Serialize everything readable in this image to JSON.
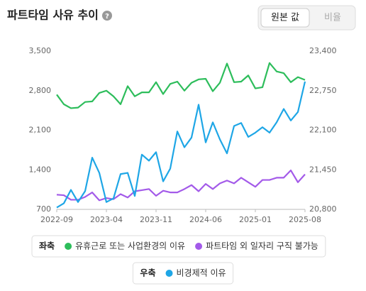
{
  "controls": {
    "options": [
      "원본 값",
      "비율"
    ],
    "selected": 0
  },
  "chart_data": {
    "type": "line",
    "title": "파트타임 사유 추이",
    "x": [
      "2022-09",
      null,
      null,
      null,
      null,
      null,
      null,
      "2023-04",
      null,
      null,
      null,
      null,
      null,
      null,
      "2023-11",
      null,
      null,
      null,
      null,
      null,
      null,
      "2024-06",
      null,
      null,
      null,
      null,
      null,
      null,
      "2025-01",
      null,
      null,
      null,
      null,
      null,
      null,
      "2025-08"
    ],
    "ylim": [
      700,
      3500
    ],
    "yticks": [
      700,
      {
        "value": 1400,
        "label": "1,400"
      },
      {
        "value": 2100,
        "label": "2,100"
      },
      {
        "value": 2800,
        "label": "2,800"
      },
      {
        "value": 3500,
        "label": "3,500"
      }
    ],
    "y2lim": [
      20800,
      23400
    ],
    "y2ticks": [
      {
        "value": 20800,
        "label": "20,800"
      },
      {
        "value": 21450,
        "label": "21,450"
      },
      {
        "value": 22100,
        "label": "22,100"
      },
      {
        "value": 22750,
        "label": "22,750"
      },
      {
        "value": 23400,
        "label": "23,400"
      }
    ],
    "grid": false,
    "left_axis_label": "좌축",
    "right_axis_label": "우축",
    "series": [
      {
        "name": "유휴근로 또는 사업환경의 이유",
        "color": "#2dbd5b",
        "values": [
          2730,
          2560,
          2490,
          2500,
          2600,
          2610,
          2760,
          2800,
          2700,
          2560,
          2880,
          2700,
          2770,
          2770,
          2950,
          2740,
          2920,
          2960,
          2800,
          2940,
          3000,
          3010,
          2790,
          2940,
          3280,
          2950,
          2960,
          3070,
          2840,
          2860,
          3290,
          3140,
          3110,
          2950,
          3040,
          2990
        ]
      },
      {
        "name": "파트타임 외 일자리 구직 불가능",
        "color": "#a35ae9",
        "values": [
          960,
          950,
          870,
          870,
          920,
          1000,
          860,
          900,
          880,
          970,
          910,
          1020,
          1040,
          1060,
          940,
          1030,
          1000,
          1000,
          1060,
          1130,
          1020,
          1150,
          1060,
          1160,
          1210,
          1160,
          1260,
          1180,
          1100,
          1220,
          1220,
          1260,
          1260,
          1390,
          1180,
          1320
        ]
      },
      {
        "name": "비경제적 이유",
        "color": "#1ea6e6",
        "axis": "y2",
        "values": [
          20830,
          20900,
          21120,
          20920,
          21100,
          21650,
          21400,
          20920,
          20980,
          21380,
          21400,
          21020,
          21700,
          21600,
          21740,
          21260,
          21470,
          22080,
          21820,
          21980,
          22520,
          21900,
          22230,
          21950,
          21720,
          22170,
          22220,
          21990,
          22060,
          22150,
          22060,
          22230,
          22450,
          22260,
          22400,
          22900
        ]
      }
    ]
  }
}
